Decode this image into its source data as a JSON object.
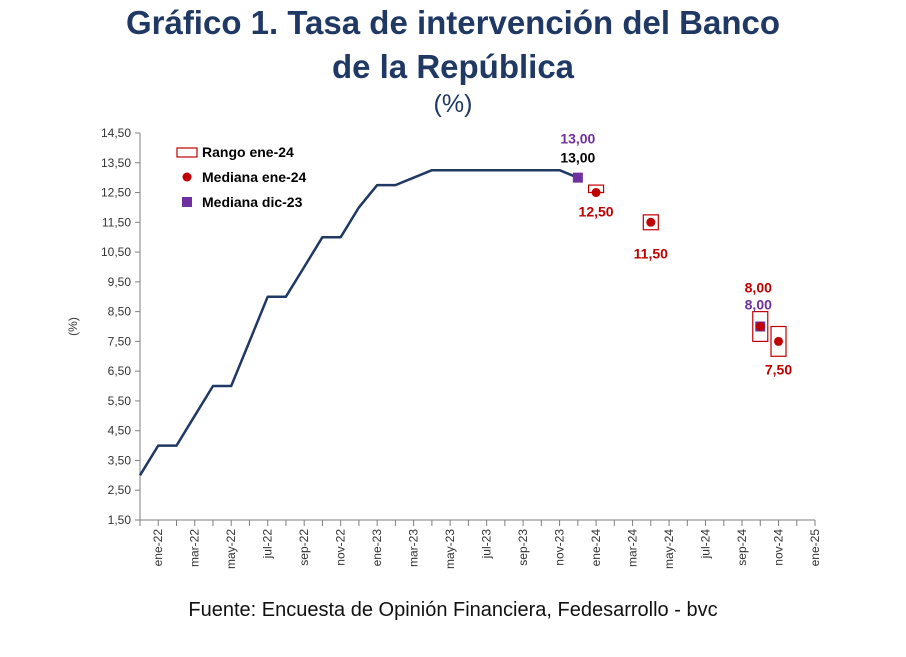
{
  "page": {
    "title_line1": "Gráfico 1. Tasa de intervención del Banco",
    "title_line2": "de la República",
    "subtitle": "(%)",
    "source": "Fuente: Encuesta de Opinión Financiera, Fedesarrollo - bvc"
  },
  "chart_data": {
    "type": "line",
    "ylabel": "(%)",
    "ylim": [
      1.5,
      14.5
    ],
    "yticks": [
      "1,50",
      "2,50",
      "3,50",
      "4,50",
      "5,50",
      "6,50",
      "7,50",
      "8,50",
      "9,50",
      "10,50",
      "11,50",
      "12,50",
      "13,50",
      "14,50"
    ],
    "x_tick_labels": [
      "ene-22",
      "mar-22",
      "may-22",
      "jul-22",
      "sep-22",
      "nov-22",
      "ene-23",
      "mar-23",
      "may-23",
      "jul-23",
      "sep-23",
      "nov-23",
      "ene-24",
      "mar-24",
      "may-24",
      "jul-24",
      "sep-24",
      "nov-24",
      "ene-25"
    ],
    "grid": false,
    "legend_position": "top-left",
    "legend": [
      {
        "key": "rango",
        "label": "Rango ene-24",
        "color": "#c00000"
      },
      {
        "key": "mediana_ene24",
        "label": "Mediana ene-24",
        "color": "#c00000"
      },
      {
        "key": "mediana_dic23",
        "label": "Mediana dic-23",
        "color": "#7030a0"
      }
    ],
    "series": [
      {
        "values": [
          {
            "x": "dic-21",
            "y": 3.0
          },
          {
            "x": "ene-22",
            "y": 4.0
          },
          {
            "x": "feb-22",
            "y": 4.0
          },
          {
            "x": "mar-22",
            "y": 5.0
          },
          {
            "x": "abr-22",
            "y": 6.0
          },
          {
            "x": "may-22",
            "y": 6.0
          },
          {
            "x": "jun-22",
            "y": 7.5
          },
          {
            "x": "jul-22",
            "y": 9.0
          },
          {
            "x": "ago-22",
            "y": 9.0
          },
          {
            "x": "sep-22",
            "y": 10.0
          },
          {
            "x": "oct-22",
            "y": 11.0
          },
          {
            "x": "nov-22",
            "y": 11.0
          },
          {
            "x": "dic-22",
            "y": 12.0
          },
          {
            "x": "ene-23",
            "y": 12.75
          },
          {
            "x": "feb-23",
            "y": 12.75
          },
          {
            "x": "mar-23",
            "y": 13.0
          },
          {
            "x": "abr-23",
            "y": 13.25
          },
          {
            "x": "may-23",
            "y": 13.25
          },
          {
            "x": "jun-23",
            "y": 13.25
          },
          {
            "x": "jul-23",
            "y": 13.25
          },
          {
            "x": "ago-23",
            "y": 13.25
          },
          {
            "x": "sep-23",
            "y": 13.25
          },
          {
            "x": "oct-23",
            "y": 13.25
          },
          {
            "x": "nov-23",
            "y": 13.25
          },
          {
            "x": "dic-23",
            "y": 13.0
          }
        ]
      }
    ],
    "mediana_dic23": [
      {
        "x": "dic-23",
        "y": 13.0,
        "label": "13,00"
      },
      {
        "x": "oct-24",
        "y": 8.0,
        "label": "8,00"
      }
    ],
    "mediana_ene24": [
      {
        "x": "ene-24",
        "y": 12.5,
        "label": "12,50",
        "range": [
          12.5,
          12.75
        ]
      },
      {
        "x": "abr-24",
        "y": 11.5,
        "label": "11,50",
        "range": [
          11.25,
          11.75
        ]
      },
      {
        "x": "oct-24",
        "y": 8.0,
        "label": "8,00",
        "range": [
          7.5,
          8.5
        ]
      },
      {
        "x": "nov-24",
        "y": 7.5,
        "label": "7,50",
        "range": [
          7.0,
          8.0
        ]
      }
    ],
    "last_observed": {
      "x": "dic-23",
      "y": 13.0,
      "label": "13,00"
    }
  }
}
